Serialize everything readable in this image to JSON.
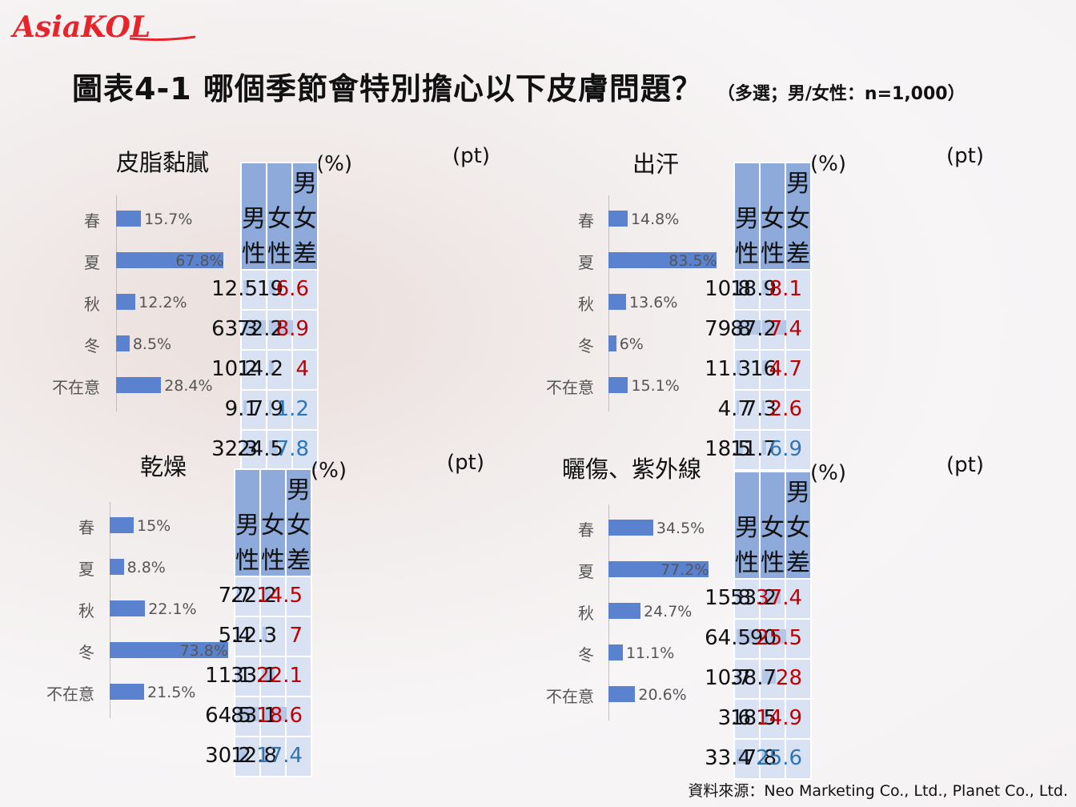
{
  "logo": {
    "text": "AsiaKOL",
    "color": "#e8242b"
  },
  "title": {
    "main": "圖表4-1  哪個季節會特別擔心以下皮膚問題？",
    "sub": "（多選；男/女性：n=1,000）"
  },
  "source": "資料來源：Neo Marketing Co., Ltd., Planet Co., Ltd.",
  "table_headers": [
    "男性",
    "女性",
    "男女差"
  ],
  "unit_pct": "(%)",
  "unit_pt": "(pt)",
  "colors": {
    "bar": "#5b82cf",
    "header": "#8eaadb",
    "cell": "#d9e2f3",
    "mini": "#b4c7e7",
    "pos": "#c00000",
    "neg": "#2e75b6"
  },
  "chart_data": [
    {
      "type": "bar",
      "title": "皮脂黏膩",
      "categories": [
        "春",
        "夏",
        "秋",
        "冬",
        "不在意"
      ],
      "values": [
        15.7,
        67.8,
        12.2,
        8.5,
        28.4
      ],
      "value_labels": [
        "15.7%",
        "67.8%",
        "12.2%",
        "8.5%",
        "28.4%"
      ],
      "table": {
        "male": [
          "12.5",
          "63.3",
          "10.2",
          "9.1",
          "32.3"
        ],
        "female": [
          "19",
          "72.2",
          "14.2",
          "7.9",
          "24.5"
        ],
        "diff": [
          "6.6",
          "8.9",
          "4",
          "1.2",
          "7.8"
        ],
        "diff_sign": [
          "female",
          "female",
          "female",
          "male",
          "male"
        ]
      }
    },
    {
      "type": "bar",
      "title": "出汗",
      "categories": [
        "春",
        "夏",
        "秋",
        "冬",
        "不在意"
      ],
      "values": [
        14.8,
        83.5,
        13.6,
        6,
        15.1
      ],
      "value_labels": [
        "14.8%",
        "83.5%",
        "13.6%",
        "6%",
        "15.1%"
      ],
      "table": {
        "male": [
          "10.8",
          "79.8",
          "11.3",
          "4.7",
          "18.5"
        ],
        "female": [
          "18.9",
          "87.2",
          "16",
          "7.3",
          "11.7"
        ],
        "diff": [
          "8.1",
          "7.4",
          "4.7",
          "2.6",
          "6.9"
        ],
        "diff_sign": [
          "female",
          "female",
          "female",
          "female",
          "male"
        ]
      }
    },
    {
      "type": "bar",
      "title": "乾燥",
      "categories": [
        "春",
        "夏",
        "秋",
        "冬",
        "不在意"
      ],
      "values": [
        15,
        8.8,
        22.1,
        73.8,
        21.5
      ],
      "value_labels": [
        "15%",
        "8.8%",
        "22.1%",
        "73.8%",
        "21.5%"
      ],
      "table": {
        "male": [
          "7.7",
          "5.4",
          "11.1",
          "64.5",
          "30.2"
        ],
        "female": [
          "22.2",
          "12.3",
          "33.1",
          "83.1",
          "12.8"
        ],
        "diff": [
          "14.5",
          "7",
          "22.1",
          "18.6",
          "17.4"
        ],
        "diff_sign": [
          "female",
          "female",
          "female",
          "female",
          "male"
        ]
      }
    },
    {
      "type": "bar",
      "title": "曬傷、紫外線",
      "categories": [
        "春",
        "夏",
        "秋",
        "冬",
        "不在意"
      ],
      "values": [
        34.5,
        77.2,
        24.7,
        11.1,
        20.6
      ],
      "value_labels": [
        "34.5%",
        "77.2%",
        "24.7%",
        "11.1%",
        "20.6%"
      ],
      "table": {
        "male": [
          "15.8",
          "64.5",
          "10.7",
          "3.6",
          "33.4"
        ],
        "female": [
          "53.2",
          "90",
          "38.7",
          "18.5",
          "7.8"
        ],
        "diff": [
          "37.4",
          "25.5",
          "28",
          "14.9",
          "25.6"
        ],
        "diff_sign": [
          "female",
          "female",
          "female",
          "female",
          "male"
        ]
      }
    }
  ]
}
